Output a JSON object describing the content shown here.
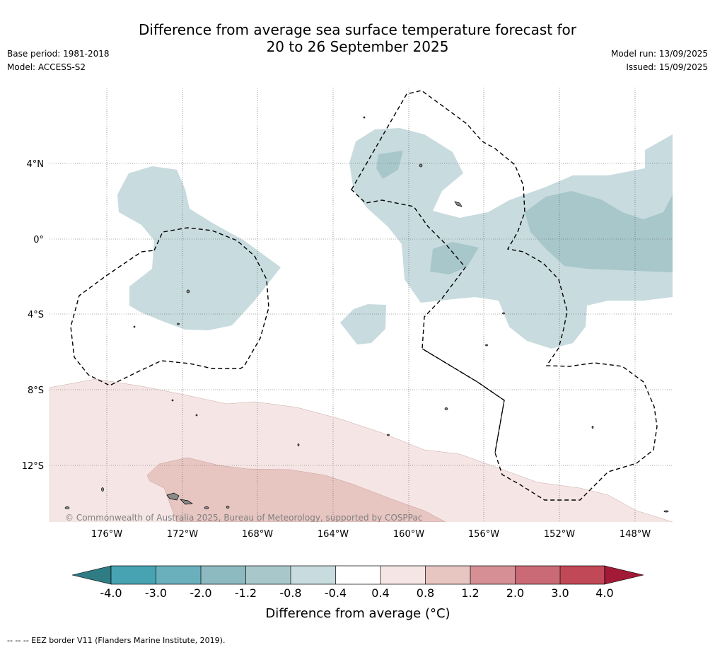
{
  "title_line1": "Difference from average sea surface temperature forecast for",
  "title_line2": "20 to 26 September 2025",
  "base_period": "Base period: 1981-2018",
  "model": "Model: ACCESS-S2",
  "model_run": "Model run: 13/09/2025",
  "issued": "Issued: 15/09/2025",
  "map": {
    "lon_labels": [
      "176°W",
      "172°W",
      "168°W",
      "164°W",
      "160°W",
      "156°W",
      "152°W",
      "148°W"
    ],
    "lat_labels": [
      "4°N",
      "0°",
      "4°S",
      "8°S",
      "12°S"
    ],
    "copyright": "© Commonwealth of Australia 2025, Bureau of Meteorology, supported by COSPPac"
  },
  "colorbar": {
    "title": "Difference from average (°C)",
    "ticks": [
      "-4.0",
      "-3.0",
      "-2.0",
      "-1.2",
      "-0.8",
      "-0.4",
      "0.4",
      "0.8",
      "1.2",
      "2.0",
      "3.0",
      "4.0"
    ],
    "colors": {
      "extend_low": "#2f7c84",
      "b1": "#47a3b2",
      "b2": "#6aafbc",
      "b3": "#8dbac1",
      "b4": "#a8c7cb",
      "b5": "#c8dbde",
      "b6": "#ffffff",
      "b7": "#f5e6e5",
      "b8": "#e7c6c2",
      "b9": "#d58f95",
      "b10": "#ca6a76",
      "b11": "#c14856",
      "extend_high": "#a31a36"
    }
  },
  "footnote": "-- -- -- EEZ border V11 (Flanders Marine Institute, 2019)."
}
